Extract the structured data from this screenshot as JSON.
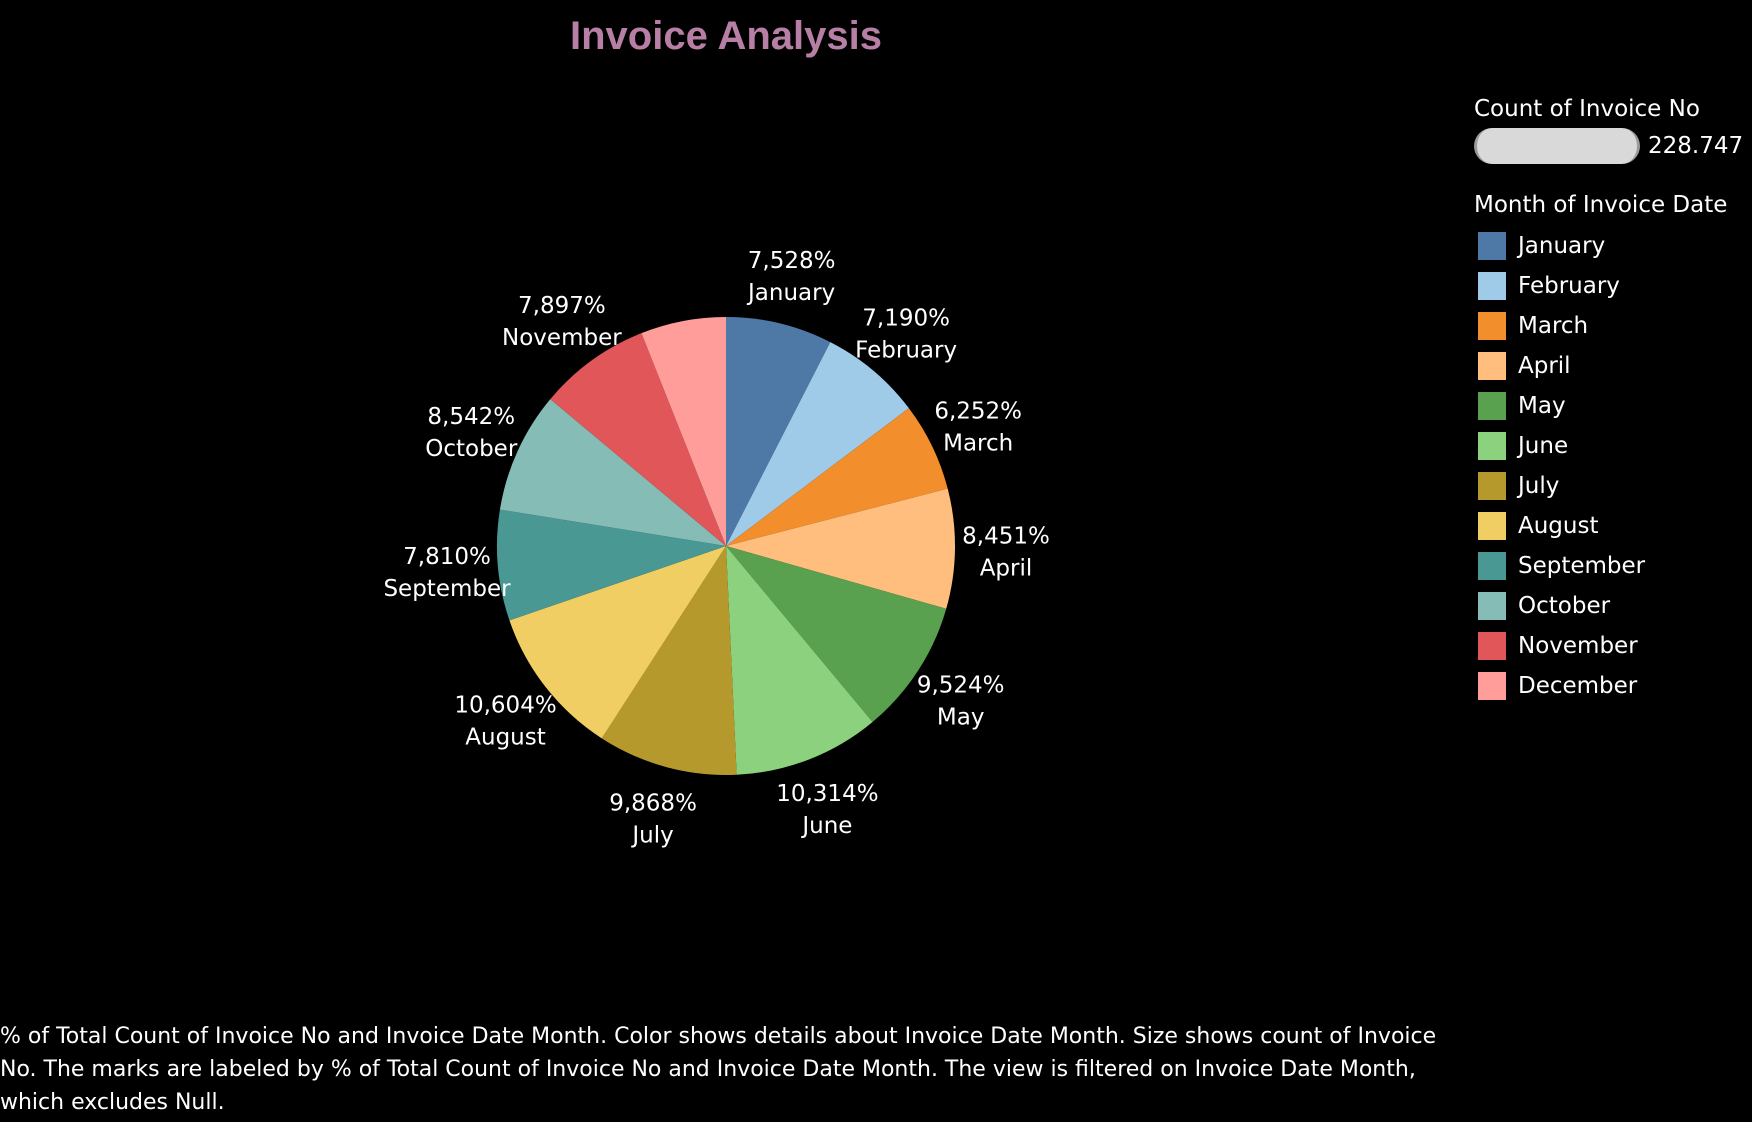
{
  "chart_data": {
    "type": "pie",
    "title": "Invoice Analysis",
    "categories": [
      "January",
      "February",
      "March",
      "April",
      "May",
      "June",
      "July",
      "August",
      "September",
      "October",
      "November",
      "December"
    ],
    "values": [
      7.528,
      7.19,
      6.252,
      8.451,
      9.524,
      10.314,
      9.868,
      10.604,
      7.81,
      8.542,
      7.897,
      6.02
    ],
    "value_labels": [
      "7,528%",
      "7,190%",
      "6,252%",
      "8,451%",
      "9,524%",
      "10,314%",
      "9,868%",
      "10,604%",
      "7,810%",
      "8,542%",
      "7,897%",
      null
    ],
    "colors": [
      "#4e79a7",
      "#a0cbe8",
      "#f28e2b",
      "#ffbe7d",
      "#59a14f",
      "#8cd17d",
      "#b6992d",
      "#f1ce63",
      "#499894",
      "#86bcb6",
      "#e15759",
      "#ff9d9a"
    ],
    "start_angle_deg": 0,
    "direction": "clockwise",
    "legend_placement": "right"
  },
  "legend": {
    "size_title": "Count of Invoice No",
    "size_value": "228.747",
    "color_title": "Month of Invoice Date"
  },
  "caption": "% of Total Count of Invoice No and Invoice Date Month.  Color shows details about Invoice Date Month.  Size shows count of Invoice No.  The marks are labeled by % of Total Count of Invoice No and Invoice Date Month. The view is filtered on Invoice Date Month, which excludes Null."
}
